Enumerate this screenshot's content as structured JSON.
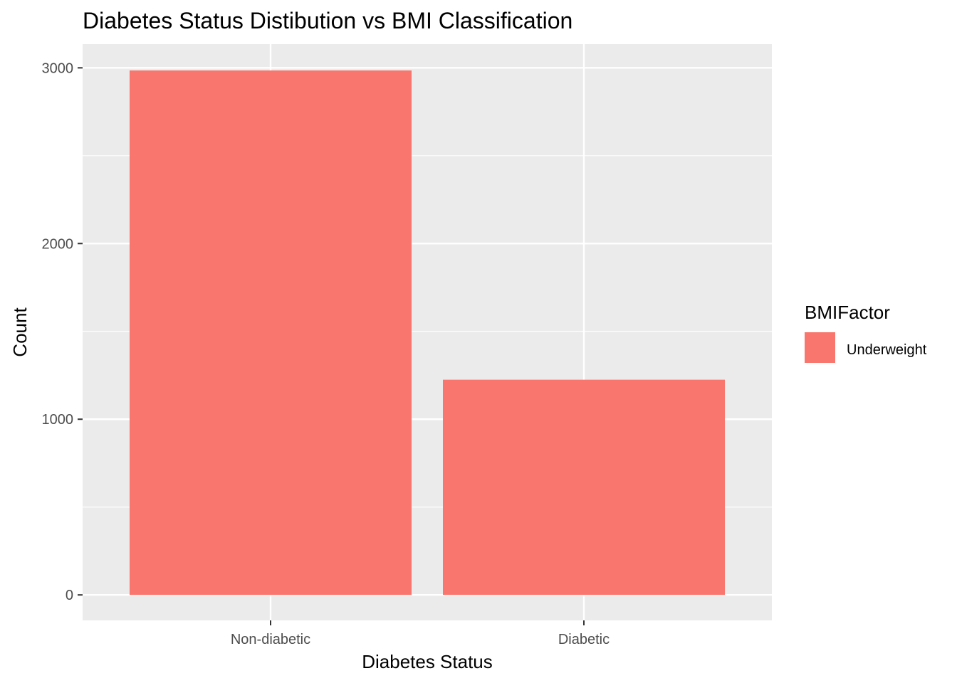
{
  "chart_data": {
    "type": "bar",
    "title": "Diabetes Status Distibution vs BMI Classification",
    "xlabel": "Diabetes Status",
    "ylabel": "Count",
    "categories": [
      "Non-diabetic",
      "Diabetic"
    ],
    "series": [
      {
        "name": "Underweight",
        "values": [
          2985,
          1225
        ]
      }
    ],
    "ylim": [
      -145,
      3135
    ],
    "yticks": [
      0,
      1000,
      2000,
      3000
    ],
    "yticks_minor": [
      500,
      1500,
      2500
    ],
    "ytick_labels": [
      "0",
      "1000",
      "2000",
      "3000"
    ],
    "grid": true,
    "legend": {
      "title": "BMIFactor",
      "position": "right",
      "entries": [
        "Underweight"
      ]
    },
    "colors": {
      "bar": "#F8766D",
      "panel": "#EBEBEB",
      "grid": "#FFFFFF",
      "tick": "#333333"
    }
  }
}
